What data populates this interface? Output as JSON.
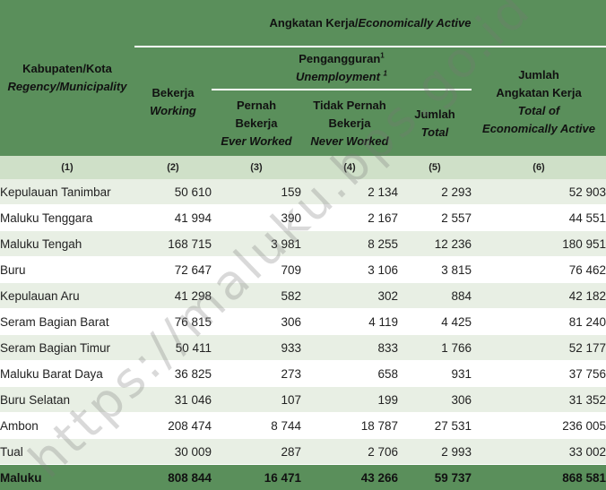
{
  "header": {
    "region_id": "Kabupaten/Kota",
    "region_en": "Regency/Municipality",
    "labor_id": "Angkatan Kerja/",
    "labor_en": "Economically Active",
    "working_id": "Bekerja",
    "working_en": "Working",
    "unemp_id": "Pengangguran",
    "unemp_en": "Unemployment",
    "unemp_sup": "1",
    "ever_id_1": "Pernah",
    "ever_id_2": "Bekerja",
    "ever_en": "Ever Worked",
    "never_id_1": "Tidak Pernah",
    "never_id_2": "Bekerja",
    "never_en": "Never Worked",
    "utotal_id": "Jumlah",
    "utotal_en": "Total",
    "total_id_1": "Jumlah",
    "total_id_2": "Angkatan Kerja",
    "total_en_1": "Total of",
    "total_en_2": "Economically Active"
  },
  "col_numbers": [
    "(1)",
    "(2)",
    "(3)",
    "(4)",
    "(5)",
    "(6)"
  ],
  "rows": [
    {
      "name": "Kepulauan Tanimbar",
      "working": "50 610",
      "ever": "159",
      "never": "2 134",
      "utotal": "2 293",
      "total": "52 903"
    },
    {
      "name": "Maluku Tenggara",
      "working": "41 994",
      "ever": "390",
      "never": "2 167",
      "utotal": "2 557",
      "total": "44 551"
    },
    {
      "name": "Maluku Tengah",
      "working": "168 715",
      "ever": "3 981",
      "never": "8 255",
      "utotal": "12 236",
      "total": "180 951"
    },
    {
      "name": "Buru",
      "working": "72 647",
      "ever": "709",
      "never": "3 106",
      "utotal": "3 815",
      "total": "76 462"
    },
    {
      "name": "Kepulauan Aru",
      "working": "41 298",
      "ever": "582",
      "never": "302",
      "utotal": "884",
      "total": "42 182"
    },
    {
      "name": "Seram Bagian Barat",
      "working": "76 815",
      "ever": "306",
      "never": "4 119",
      "utotal": "4 425",
      "total": "81 240"
    },
    {
      "name": "Seram Bagian Timur",
      "working": "50 411",
      "ever": "933",
      "never": "833",
      "utotal": "1 766",
      "total": "52 177"
    },
    {
      "name": "Maluku Barat Daya",
      "working": "36 825",
      "ever": "273",
      "never": "658",
      "utotal": "931",
      "total": "37 756"
    },
    {
      "name": "Buru Selatan",
      "working": "31 046",
      "ever": "107",
      "never": "199",
      "utotal": "306",
      "total": "31 352"
    },
    {
      "name": "Ambon",
      "working": "208 474",
      "ever": "8 744",
      "never": "18 787",
      "utotal": "27 531",
      "total": "236 005"
    },
    {
      "name": "Tual",
      "working": "30 009",
      "ever": "287",
      "never": "2 706",
      "utotal": "2 993",
      "total": "33 002"
    }
  ],
  "total_row": {
    "name": "Maluku",
    "working": "808 844",
    "ever": "16 471",
    "never": "43 266",
    "utotal": "59 737",
    "total": "868 581"
  },
  "watermark": "https://maluku.bps.go.id"
}
